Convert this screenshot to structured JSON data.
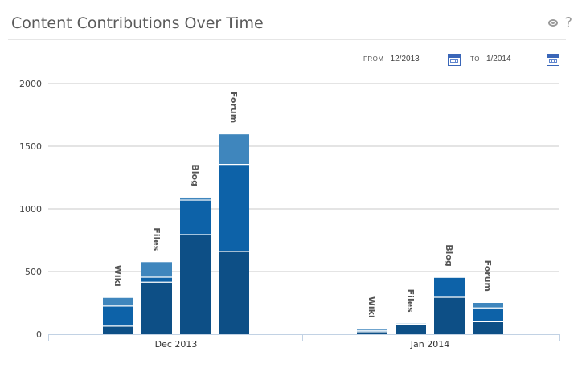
{
  "header": {
    "title": "Content Contributions Over Time",
    "help_label": "?"
  },
  "date_range": {
    "from_label": "FROM",
    "from_value": "12/2013",
    "to_label": "TO",
    "to_value": "1/2014"
  },
  "chart_data": {
    "type": "bar",
    "stacked": true,
    "title": "",
    "xlabel": "",
    "ylabel": "",
    "ylim": [
      0,
      2000
    ],
    "yticks": [
      0,
      500,
      1000,
      1500,
      2000
    ],
    "grid": true,
    "groups": [
      "Dec 2013",
      "Jan 2014"
    ],
    "categories": [
      "Wiki",
      "Files",
      "Blog",
      "Forum"
    ],
    "segment_colors": [
      "#0d4f86",
      "#0d62a8",
      "#3f86bd"
    ],
    "data": {
      "Dec 2013": {
        "Wiki": [
          65,
          160,
          65
        ],
        "Files": [
          415,
          40,
          120
        ],
        "Blog": [
          795,
          275,
          20
        ],
        "Forum": [
          660,
          695,
          240
        ]
      },
      "Jan 2014": {
        "Wiki": [
          20,
          10,
          10
        ],
        "Files": [
          75,
          5,
          5
        ],
        "Blog": [
          295,
          155,
          0
        ],
        "Forum": [
          100,
          110,
          40
        ]
      }
    }
  }
}
